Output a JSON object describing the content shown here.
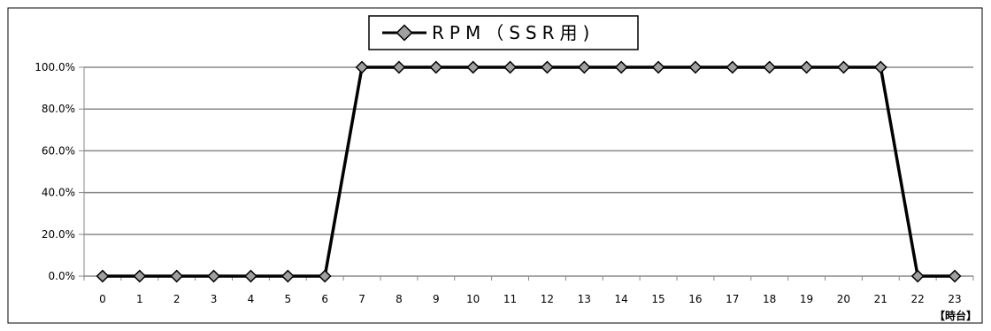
{
  "chart_data": {
    "type": "line",
    "categories": [
      "0",
      "1",
      "2",
      "3",
      "4",
      "5",
      "6",
      "7",
      "8",
      "9",
      "10",
      "11",
      "12",
      "13",
      "14",
      "15",
      "16",
      "17",
      "18",
      "19",
      "20",
      "21",
      "22",
      "23"
    ],
    "series": [
      {
        "name": "RPM（SSR用)",
        "values": [
          0,
          0,
          0,
          0,
          0,
          0,
          0,
          100,
          100,
          100,
          100,
          100,
          100,
          100,
          100,
          100,
          100,
          100,
          100,
          100,
          100,
          100,
          0,
          0
        ]
      }
    ],
    "ylim": [
      0,
      100
    ],
    "yticks": [
      "0.0%",
      "20.0%",
      "40.0%",
      "60.0%",
      "80.0%",
      "100.0%"
    ],
    "x_unit_label": "【時台】",
    "grid": "horizontal",
    "legend_position": "top-center",
    "colors": {
      "line": "#000000",
      "marker_fill": "#a0a0a0",
      "grid": "#888888"
    }
  }
}
